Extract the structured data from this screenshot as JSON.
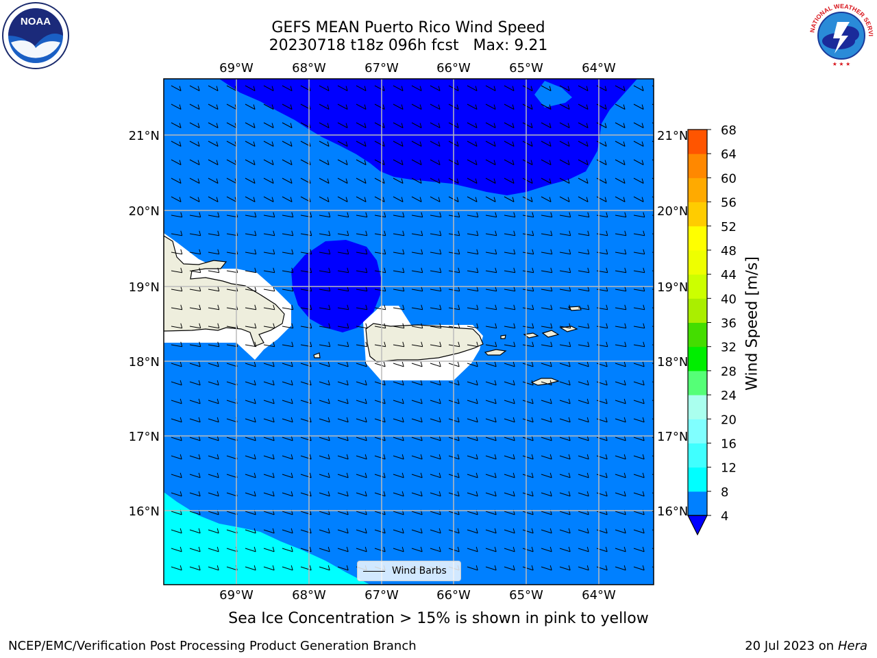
{
  "header": {
    "title_line1": "GEFS MEAN Puerto Rico Wind Speed",
    "title_line2": "20230718 t18z 096h fcst   Max: 9.21"
  },
  "logos": {
    "noaa_text": "NOAA",
    "noaa_ring_text": "NATIONAL OCEANIC AND ATMOSPHERIC ADMINISTRATION · U.S. DEPARTMENT OF COMMERCE",
    "nws_ring_text": "NATIONAL WEATHER SERVICE"
  },
  "map": {
    "lon_labels": [
      "69°W",
      "68°W",
      "67°W",
      "66°W",
      "65°W",
      "64°W"
    ],
    "lat_labels": [
      "21°N",
      "20°N",
      "19°N",
      "18°N",
      "17°N",
      "16°N"
    ],
    "legend_label": "Wind Barbs",
    "colors": {
      "under_4": "#0000ff",
      "land": "#eeeedd",
      "grid": "#bbbbbb"
    }
  },
  "colorbar": {
    "label": "Wind Speed [m/s]",
    "ticks": [
      "4",
      "8",
      "12",
      "16",
      "20",
      "24",
      "28",
      "32",
      "36",
      "40",
      "44",
      "48",
      "52",
      "56",
      "60",
      "64",
      "68"
    ],
    "colors": [
      "#0080ff",
      "#00ffff",
      "#40ffff",
      "#80ffff",
      "#aaffee",
      "#55ff77",
      "#00ee00",
      "#44dd00",
      "#aaee00",
      "#ccff00",
      "#eeff00",
      "#ffff00",
      "#ffcc00",
      "#ffaa00",
      "#ff8800",
      "#ff5500",
      "#ff3300",
      "#ff0000"
    ],
    "extend_color": "#0000ff"
  },
  "footer": {
    "note": "Sea Ice Concentration > 15% is shown in pink to yellow",
    "left": "NCEP/EMC/Verification Post Processing Product Generation Branch",
    "right_prefix": "20 Jul 2023 on ",
    "right_host": "Hera"
  }
}
